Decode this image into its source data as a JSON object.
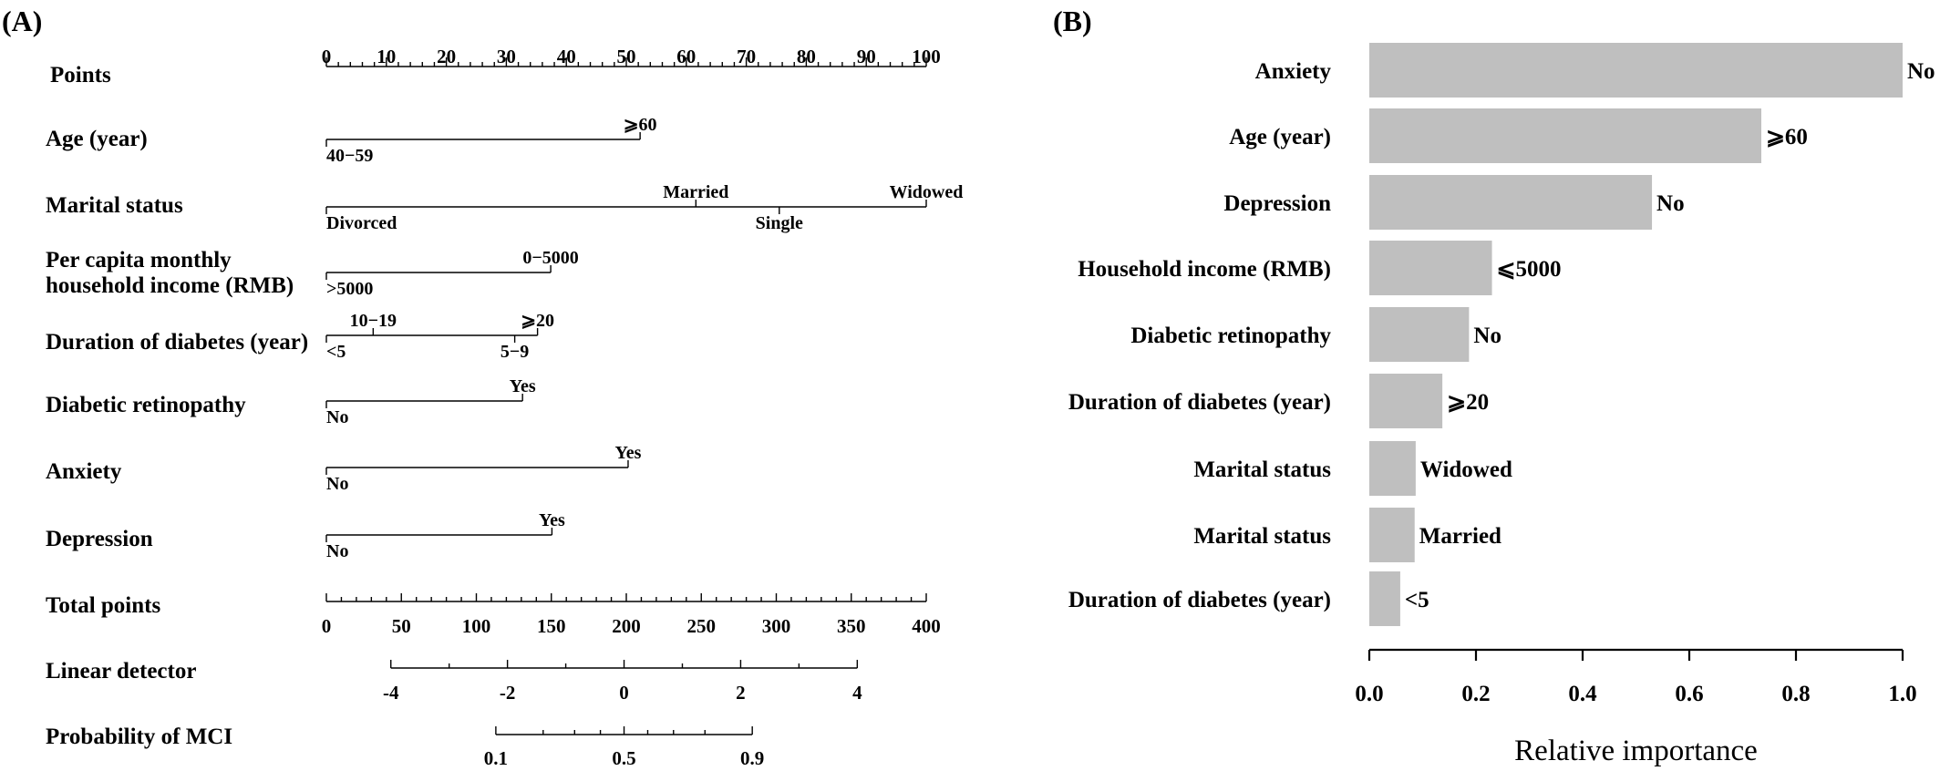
{
  "panels": {
    "a": "(A)",
    "b": "(B)"
  },
  "nomogram": {
    "points": {
      "label": "Points",
      "ticks": [
        0,
        10,
        20,
        30,
        40,
        50,
        60,
        70,
        80,
        90,
        100
      ]
    },
    "variables": [
      {
        "label": "Age (year)",
        "levels": [
          {
            "text": "40−59",
            "points": 0,
            "pos": "below"
          },
          {
            "text": "⩾60",
            "points": 52.3,
            "pos": "above"
          }
        ]
      },
      {
        "label": "Marital status",
        "levels": [
          {
            "text": "Divorced",
            "points": 0,
            "pos": "below"
          },
          {
            "text": "Married",
            "points": 61.6,
            "pos": "above"
          },
          {
            "text": "Single",
            "points": 75.5,
            "pos": "below"
          },
          {
            "text": "Widowed",
            "points": 100,
            "pos": "above"
          }
        ]
      },
      {
        "label": [
          "Per capita monthly",
          "household income (RMB)"
        ],
        "levels": [
          {
            "text": ">5000",
            "points": 0,
            "pos": "below"
          },
          {
            "text": "0−5000",
            "points": 37.4,
            "pos": "above"
          }
        ]
      },
      {
        "label": "Duration of diabetes (year)",
        "levels": [
          {
            "text": "<5",
            "points": 0,
            "pos": "below"
          },
          {
            "text": "10−19",
            "points": 7.8,
            "pos": "above"
          },
          {
            "text": "5−9",
            "points": 31.4,
            "pos": "below"
          },
          {
            "text": "⩾20",
            "points": 35.2,
            "pos": "above"
          }
        ]
      },
      {
        "label": "Diabetic retinopathy",
        "levels": [
          {
            "text": "No",
            "points": 0,
            "pos": "below"
          },
          {
            "text": "Yes",
            "points": 32.7,
            "pos": "above"
          }
        ]
      },
      {
        "label": "Anxiety",
        "levels": [
          {
            "text": "No",
            "points": 0,
            "pos": "below"
          },
          {
            "text": "Yes",
            "points": 50.3,
            "pos": "above"
          }
        ]
      },
      {
        "label": "Depression",
        "levels": [
          {
            "text": "No",
            "points": 0,
            "pos": "below"
          },
          {
            "text": "Yes",
            "points": 37.6,
            "pos": "above"
          }
        ]
      }
    ],
    "total_points": {
      "label": "Total points",
      "ticks": [
        0,
        50,
        100,
        150,
        200,
        250,
        300,
        350,
        400
      ]
    },
    "linear_detector": {
      "label": "Linear detector",
      "ticks": [
        -4,
        -2,
        0,
        2,
        4
      ],
      "range_total_points": [
        43,
        354
      ]
    },
    "probability": {
      "label": "Probability of MCI",
      "tick_labels": [
        "0.1",
        "0.5",
        "0.9"
      ],
      "range_total_points": [
        113,
        284
      ]
    }
  },
  "chart_data": {
    "type": "bar",
    "orientation": "horizontal",
    "xlabel": "Relative importance",
    "xlim": [
      0,
      1
    ],
    "xticks": [
      "0.0",
      "0.2",
      "0.4",
      "0.6",
      "0.8",
      "1.0"
    ],
    "bar_color": "#bfbfbf",
    "categories": [
      "Anxiety",
      "Age (year)",
      "Depression",
      "Household income (RMB)",
      "Diabetic retinopathy",
      "Duration of diabetes (year)",
      "Marital status",
      "Marital status",
      "Duration of diabetes (year)"
    ],
    "values": [
      1.0,
      0.735,
      0.53,
      0.23,
      0.187,
      0.137,
      0.087,
      0.085,
      0.058
    ],
    "bar_labels": [
      "No",
      "⩾60",
      "No",
      "⩽5000",
      "No",
      "⩾20",
      "Widowed",
      "Married",
      "<5"
    ]
  }
}
